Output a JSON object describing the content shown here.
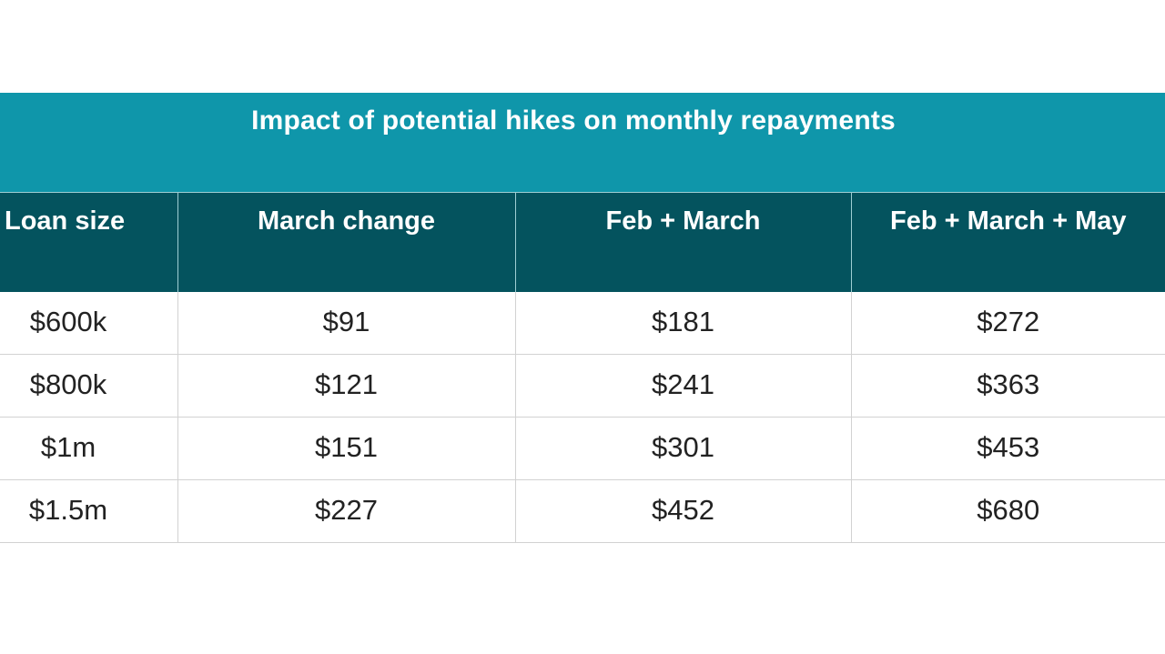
{
  "chart_data": {
    "type": "table",
    "title": "Impact of potential hikes on monthly repayments",
    "columns": [
      "Loan size",
      "March change",
      "Feb + March",
      "Feb + March + May"
    ],
    "rows": [
      [
        "$600k",
        "$91",
        "$181",
        "$272"
      ],
      [
        "$800k",
        "$121",
        "$241",
        "$363"
      ],
      [
        "$1m",
        "$151",
        "$301",
        "$453"
      ],
      [
        "$1.5m",
        "$227",
        "$452",
        "$680"
      ]
    ],
    "colors": {
      "title_background": "#0f96aa",
      "header_background": "#04535e",
      "header_text": "#ffffff",
      "body_text": "#222222"
    }
  }
}
